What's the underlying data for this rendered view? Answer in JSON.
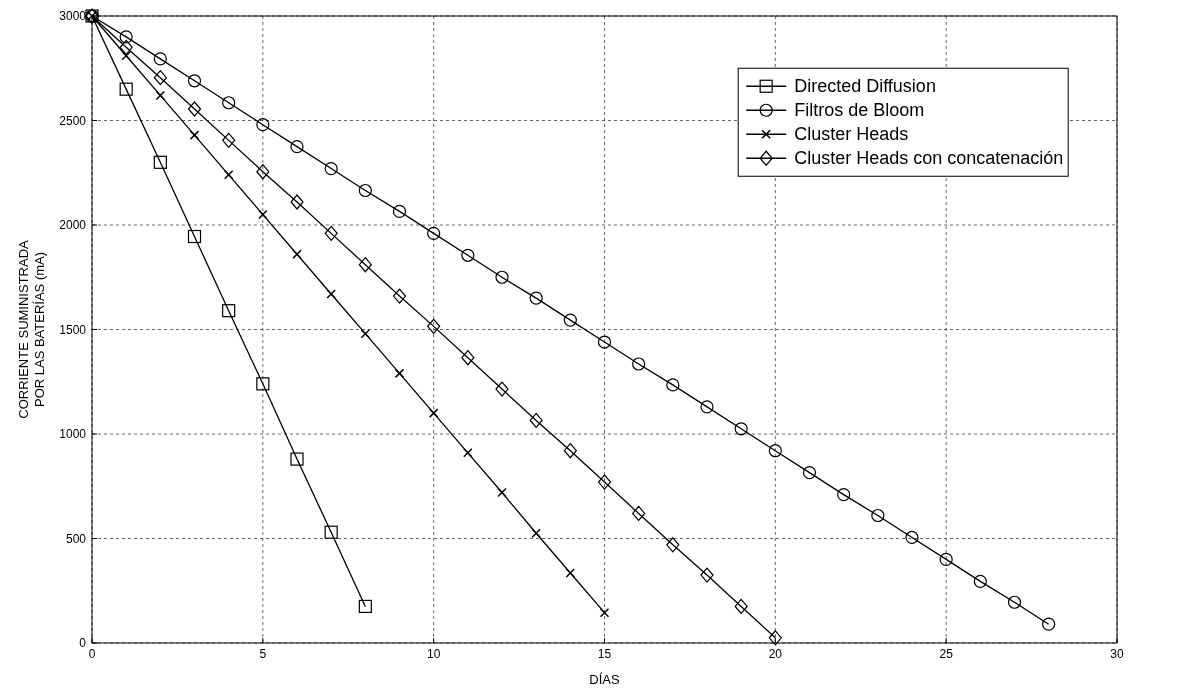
{
  "chart_data": {
    "type": "line",
    "xlabel": "DÍAS",
    "ylabel": "CORRIENTE SUMINISTRADA\nPOR LAS BATERÍAS (mA)",
    "xlim": [
      0,
      30
    ],
    "ylim": [
      0,
      3000
    ],
    "xticks": [
      0,
      5,
      10,
      15,
      20,
      25,
      30
    ],
    "yticks": [
      0,
      500,
      1000,
      1500,
      2000,
      2500,
      3000
    ],
    "grid": true,
    "legend": "top right",
    "series": [
      {
        "name": "Directed Diffusion",
        "color": "#000000",
        "marker": "square",
        "x": [
          0,
          1,
          2,
          3,
          4,
          5,
          6,
          7,
          8
        ],
        "values": [
          3000,
          2650,
          2300,
          1945,
          1590,
          1240,
          880,
          530,
          175
        ]
      },
      {
        "name": "Filtros de Bloom",
        "color": "#000000",
        "marker": "circle",
        "x": [
          0,
          1,
          2,
          3,
          4,
          5,
          6,
          7,
          8,
          9,
          10,
          11,
          12,
          13,
          14,
          15,
          16,
          17,
          18,
          19,
          20,
          21,
          22,
          23,
          24,
          25,
          26,
          27,
          28
        ],
        "values": [
          3000,
          2900,
          2795,
          2690,
          2585,
          2480,
          2375,
          2270,
          2165,
          2065,
          1960,
          1855,
          1750,
          1650,
          1545,
          1440,
          1335,
          1235,
          1130,
          1025,
          920,
          815,
          710,
          610,
          505,
          400,
          295,
          195,
          90
        ]
      },
      {
        "name": "Cluster Heads",
        "color": "#000000",
        "marker": "cross",
        "x": [
          0,
          1,
          2,
          3,
          4,
          5,
          6,
          7,
          8,
          9,
          10,
          11,
          12,
          13,
          14,
          15
        ],
        "values": [
          3000,
          2810,
          2620,
          2430,
          2240,
          2050,
          1860,
          1670,
          1480,
          1290,
          1100,
          910,
          720,
          525,
          335,
          145
        ]
      },
      {
        "name": "Cluster Heads con concatenación",
        "color": "#000000",
        "marker": "diamond",
        "x": [
          0,
          1,
          2,
          3,
          4,
          5,
          6,
          7,
          8,
          9,
          10,
          11,
          12,
          13,
          14,
          15,
          16,
          17,
          18,
          19,
          20
        ],
        "values": [
          3000,
          2850,
          2705,
          2555,
          2405,
          2255,
          2110,
          1960,
          1810,
          1660,
          1515,
          1365,
          1215,
          1065,
          920,
          770,
          620,
          470,
          325,
          175,
          25
        ]
      }
    ]
  }
}
